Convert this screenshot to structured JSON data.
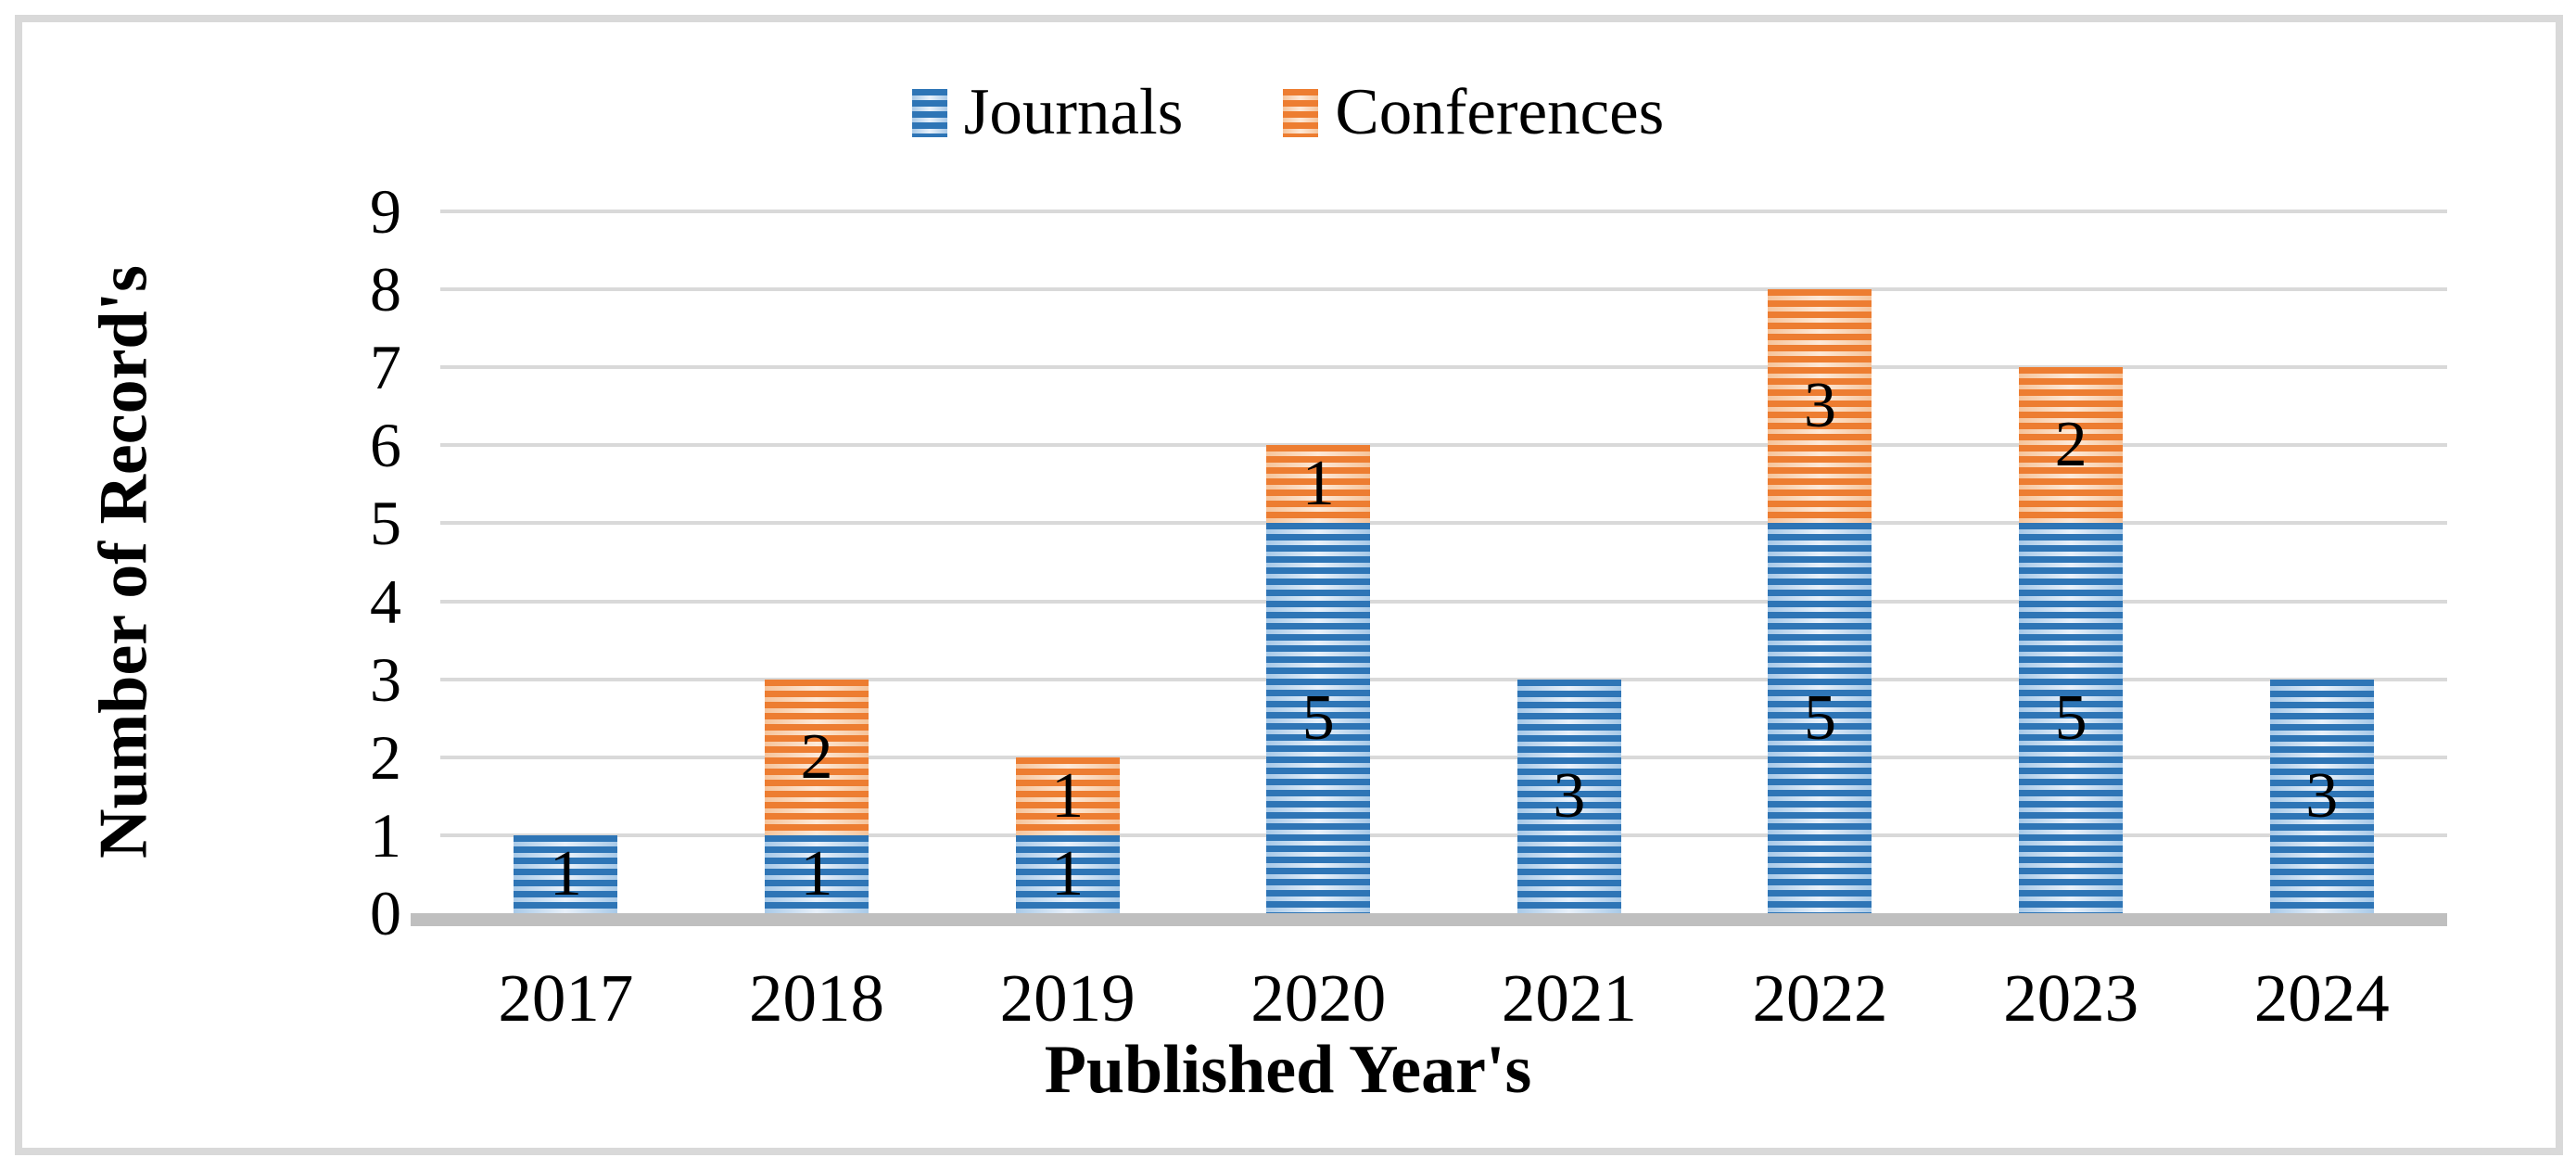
{
  "figure": {
    "background": "#ffffff",
    "border_color": "#d9d9d9",
    "gridline_color": "#d9d9d9",
    "axis_line_color": "#bfbfbf",
    "text_color": "#000000"
  },
  "legend": {
    "items": [
      {
        "label": "Journals",
        "swatch": "blue-striped-square"
      },
      {
        "label": "Conferences",
        "swatch": "orange-striped-square"
      }
    ]
  },
  "chart_data": {
    "type": "bar",
    "stacked": true,
    "title": "",
    "xlabel": "Published Year's",
    "ylabel": "Number of Record's",
    "categories": [
      "2017",
      "2018",
      "2019",
      "2020",
      "2021",
      "2022",
      "2023",
      "2024"
    ],
    "series": [
      {
        "name": "Journals",
        "values": [
          1,
          1,
          1,
          5,
          3,
          5,
          5,
          3
        ],
        "color": "#2E75B6",
        "stripe_color": "#A7C9E8",
        "stripe_highlight": "#E9F1FA",
        "pattern": "horizontal-stripes"
      },
      {
        "name": "Conferences",
        "values": [
          0,
          2,
          1,
          1,
          0,
          3,
          2,
          0
        ],
        "color": "#ED7D31",
        "stripe_color": "#F6C49B",
        "stripe_highlight": "#FDE9D8",
        "pattern": "horizontal-stripes"
      }
    ],
    "totals": [
      1,
      3,
      2,
      6,
      3,
      8,
      7,
      3
    ],
    "data_labels_visible": true,
    "ylim": [
      0,
      9
    ],
    "ytick_labels": [
      "0",
      "1",
      "2",
      "3",
      "4",
      "5",
      "6",
      "7",
      "8",
      "9"
    ],
    "grid": true,
    "legend_position": "top-center"
  }
}
